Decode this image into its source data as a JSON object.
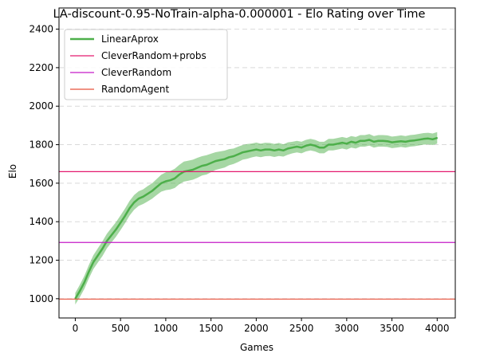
{
  "chart_data": {
    "type": "line",
    "title": "LA-discount-0.95-NoTrain-alpha-0.000001 - Elo Rating over Time",
    "xlabel": "Games",
    "ylabel": "Elo",
    "xlim": [
      -180,
      4200
    ],
    "ylim": [
      900,
      2510
    ],
    "xticks": [
      0,
      500,
      1000,
      1500,
      2000,
      2500,
      3000,
      3500,
      4000
    ],
    "yticks": [
      1000,
      1200,
      1400,
      1600,
      1800,
      2000,
      2200,
      2400
    ],
    "grid": {
      "y": true,
      "x": false,
      "style": "dashed"
    },
    "legend": {
      "position": "top-left"
    },
    "series": [
      {
        "name": "LinearAprox",
        "color": "#4daf4a",
        "band_color": "#4daf4a",
        "x": [
          0,
          50,
          100,
          150,
          200,
          250,
          300,
          350,
          400,
          450,
          500,
          550,
          600,
          650,
          700,
          750,
          800,
          850,
          900,
          950,
          1000,
          1050,
          1100,
          1150,
          1200,
          1250,
          1300,
          1350,
          1400,
          1450,
          1500,
          1550,
          1600,
          1650,
          1700,
          1750,
          1800,
          1850,
          1900,
          1950,
          2000,
          2050,
          2100,
          2150,
          2200,
          2250,
          2300,
          2350,
          2400,
          2450,
          2500,
          2550,
          2600,
          2650,
          2700,
          2750,
          2800,
          2850,
          2900,
          2950,
          3000,
          3050,
          3100,
          3150,
          3200,
          3250,
          3300,
          3350,
          3400,
          3450,
          3500,
          3550,
          3600,
          3650,
          3700,
          3750,
          3800,
          3850,
          3900,
          3950,
          4000
        ],
        "y": [
          1000,
          1040,
          1085,
          1140,
          1190,
          1225,
          1260,
          1300,
          1330,
          1360,
          1395,
          1430,
          1470,
          1500,
          1520,
          1530,
          1545,
          1560,
          1580,
          1600,
          1610,
          1615,
          1625,
          1645,
          1660,
          1665,
          1670,
          1680,
          1690,
          1695,
          1705,
          1715,
          1720,
          1725,
          1735,
          1740,
          1750,
          1760,
          1765,
          1770,
          1775,
          1770,
          1775,
          1775,
          1770,
          1775,
          1770,
          1780,
          1785,
          1790,
          1785,
          1795,
          1800,
          1795,
          1785,
          1785,
          1800,
          1800,
          1805,
          1810,
          1805,
          1815,
          1810,
          1820,
          1820,
          1825,
          1815,
          1820,
          1820,
          1818,
          1812,
          1815,
          1818,
          1815,
          1820,
          1822,
          1826,
          1830,
          1832,
          1828,
          1835
        ],
        "band": [
          30,
          32,
          34,
          35,
          36,
          37,
          38,
          38,
          38,
          38,
          38,
          38,
          38,
          38,
          38,
          38,
          40,
          40,
          42,
          44,
          46,
          48,
          50,
          50,
          52,
          52,
          52,
          52,
          50,
          50,
          48,
          46,
          45,
          44,
          42,
          40,
          40,
          38,
          38,
          36,
          36,
          35,
          35,
          34,
          34,
          34,
          32,
          32,
          30,
          30,
          30,
          30,
          30,
          30,
          30,
          30,
          30,
          30,
          30,
          30,
          30,
          30,
          30,
          30,
          30,
          30,
          30,
          30,
          30,
          30,
          30,
          30,
          30,
          30,
          30,
          30,
          30,
          30,
          30,
          30,
          30
        ]
      },
      {
        "name": "CleverRandom+probs",
        "color": "#e31a6f",
        "constant": 1660
      },
      {
        "name": "CleverRandom",
        "color": "#c51bc8",
        "constant": 1292
      },
      {
        "name": "RandomAgent",
        "color": "#e8513a",
        "constant": 998
      }
    ]
  }
}
